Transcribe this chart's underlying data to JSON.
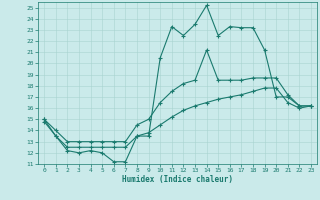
{
  "xlabel": "Humidex (Indice chaleur)",
  "background_color": "#caeaea",
  "grid_color": "#a8d4d0",
  "line_color": "#1a7a6e",
  "xlim": [
    -0.5,
    23.5
  ],
  "ylim": [
    11,
    25.5
  ],
  "xticks": [
    0,
    1,
    2,
    3,
    4,
    5,
    6,
    7,
    8,
    9,
    10,
    11,
    12,
    13,
    14,
    15,
    16,
    17,
    18,
    19,
    20,
    21,
    22,
    23
  ],
  "yticks": [
    11,
    12,
    13,
    14,
    15,
    16,
    17,
    18,
    19,
    20,
    21,
    22,
    23,
    24,
    25
  ],
  "line1_x": [
    0,
    1,
    2,
    3,
    4,
    5,
    6,
    7,
    8,
    9,
    10,
    11,
    12,
    13,
    14,
    15,
    16,
    17,
    18,
    19,
    20,
    21,
    22,
    23
  ],
  "line1_y": [
    15,
    13.5,
    12.2,
    12.0,
    12.2,
    12.0,
    11.2,
    11.2,
    13.5,
    13.5,
    20.5,
    23.3,
    22.5,
    23.5,
    25.2,
    22.5,
    23.3,
    23.2,
    23.2,
    21.2,
    17.0,
    17.0,
    16.2,
    16.2
  ],
  "line2_x": [
    0,
    1,
    2,
    3,
    4,
    5,
    6,
    7,
    8,
    9,
    10,
    11,
    12,
    13,
    14,
    15,
    16,
    17,
    18,
    19,
    20,
    21,
    22,
    23
  ],
  "line2_y": [
    15.0,
    14.0,
    13.0,
    13.0,
    13.0,
    13.0,
    13.0,
    13.0,
    14.5,
    15.0,
    16.5,
    17.5,
    18.2,
    18.5,
    21.2,
    18.5,
    18.5,
    18.5,
    18.7,
    18.7,
    18.7,
    17.2,
    16.2,
    16.2
  ],
  "line3_x": [
    0,
    1,
    2,
    3,
    4,
    5,
    6,
    7,
    8,
    9,
    10,
    11,
    12,
    13,
    14,
    15,
    16,
    17,
    18,
    19,
    20,
    21,
    22,
    23
  ],
  "line3_y": [
    14.8,
    13.5,
    12.5,
    12.5,
    12.5,
    12.5,
    12.5,
    12.5,
    13.5,
    13.8,
    14.5,
    15.2,
    15.8,
    16.2,
    16.5,
    16.8,
    17.0,
    17.2,
    17.5,
    17.8,
    17.8,
    16.5,
    16.0,
    16.2
  ]
}
